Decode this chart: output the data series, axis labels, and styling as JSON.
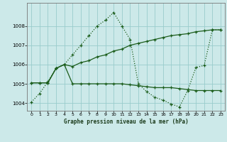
{
  "title": "Graphe pression niveau de la mer (hPa)",
  "background_color": "#cce9e9",
  "grid_color": "#99cccc",
  "line_color": "#1a5c1a",
  "xlim": [
    -0.5,
    23.5
  ],
  "ylim": [
    1003.6,
    1009.2
  ],
  "yticks": [
    1004,
    1005,
    1006,
    1007,
    1008
  ],
  "xticks": [
    0,
    1,
    2,
    3,
    4,
    5,
    6,
    7,
    8,
    9,
    10,
    11,
    12,
    13,
    14,
    15,
    16,
    17,
    18,
    19,
    20,
    21,
    22,
    23
  ],
  "series1_x": [
    0,
    1,
    2,
    3,
    4,
    5,
    6,
    7,
    8,
    9,
    10,
    11,
    12,
    13,
    14,
    15,
    16,
    17,
    18,
    19,
    20,
    21,
    22,
    23
  ],
  "series1_y": [
    1004.05,
    1004.5,
    1005.1,
    1005.8,
    1006.0,
    1006.5,
    1007.0,
    1007.5,
    1008.0,
    1008.3,
    1008.7,
    1008.0,
    1007.3,
    1005.0,
    1004.6,
    1004.3,
    1004.15,
    1003.95,
    1003.8,
    1004.65,
    1005.85,
    1005.95,
    1007.8,
    1007.8
  ],
  "series2_x": [
    0,
    1,
    2,
    3,
    4,
    5,
    6,
    7,
    8,
    9,
    10,
    11,
    12,
    13,
    14,
    15,
    16,
    17,
    18,
    19,
    20,
    21,
    22,
    23
  ],
  "series2_y": [
    1005.05,
    1005.05,
    1005.05,
    1005.8,
    1006.0,
    1005.0,
    1005.0,
    1005.0,
    1005.0,
    1005.0,
    1005.0,
    1005.0,
    1004.95,
    1004.9,
    1004.85,
    1004.8,
    1004.8,
    1004.8,
    1004.75,
    1004.7,
    1004.65,
    1004.65,
    1004.65,
    1004.65
  ],
  "series3_x": [
    0,
    1,
    2,
    3,
    4,
    5,
    6,
    7,
    8,
    9,
    10,
    11,
    12,
    13,
    14,
    15,
    16,
    17,
    18,
    19,
    20,
    21,
    22,
    23
  ],
  "series3_y": [
    1005.05,
    1005.05,
    1005.05,
    1005.8,
    1006.0,
    1005.9,
    1006.1,
    1006.2,
    1006.4,
    1006.5,
    1006.7,
    1006.8,
    1007.0,
    1007.1,
    1007.2,
    1007.3,
    1007.4,
    1007.5,
    1007.55,
    1007.6,
    1007.7,
    1007.75,
    1007.8,
    1007.8
  ]
}
